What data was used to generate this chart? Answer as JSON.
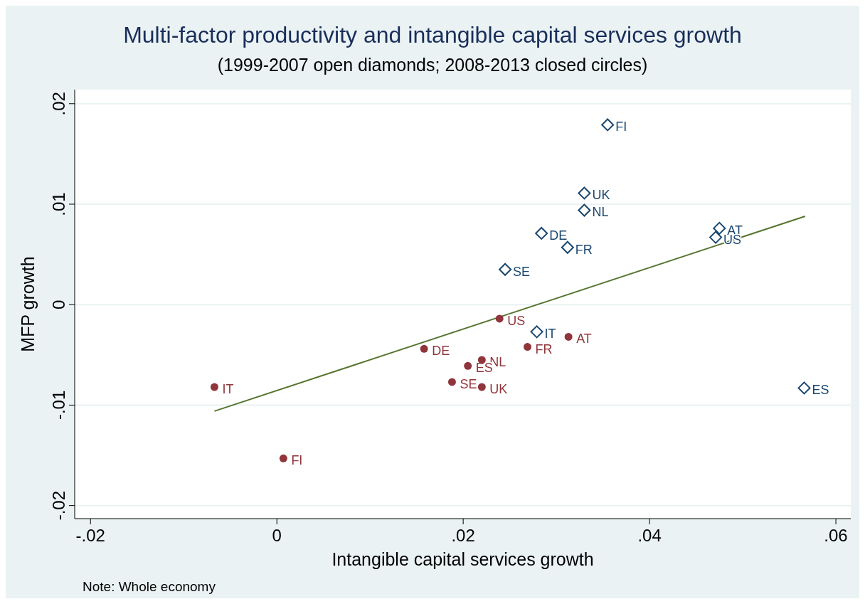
{
  "chart_data": {
    "type": "scatter",
    "title": "Multi-factor productivity and intangible capital services growth",
    "subtitle": "(1999-2007 open diamonds; 2008-2013 closed circles)",
    "xlabel": "Intangible capital services growth",
    "ylabel": "MFP growth",
    "xlim": [
      -0.0217,
      0.0616
    ],
    "ylim": [
      -0.0213,
      0.0214
    ],
    "xticks": [
      {
        "value": -0.02,
        "label": "-.02"
      },
      {
        "value": 0,
        "label": "0"
      },
      {
        "value": 0.02,
        "label": ".02"
      },
      {
        "value": 0.04,
        "label": ".04"
      },
      {
        "value": 0.06,
        "label": ".06"
      }
    ],
    "yticks": [
      {
        "value": -0.02,
        "label": "-.02"
      },
      {
        "value": -0.01,
        "label": "-.01"
      },
      {
        "value": 0,
        "label": "0"
      },
      {
        "value": 0.01,
        "label": ".01"
      },
      {
        "value": 0.02,
        "label": ".02"
      }
    ],
    "grid": "y",
    "series": [
      {
        "marker": "diamond",
        "color": "#1a476f",
        "x": [
          0.0355,
          0.033,
          0.033,
          0.0284,
          0.0312,
          0.0245,
          0.0475,
          0.0471,
          0.0279,
          0.0566
        ],
        "values": [
          0.0179,
          0.0111,
          0.0094,
          0.0071,
          0.0057,
          0.0035,
          0.0076,
          0.0067,
          -0.0027,
          -0.0083
        ]
      },
      {
        "marker": "circle",
        "color": "#90353b",
        "x": [
          0.0239,
          0.0313,
          0.0269,
          0.022,
          0.0158,
          0.0205,
          0.0188,
          0.022,
          -0.0067,
          0.0007
        ],
        "values": [
          -0.0014,
          -0.0032,
          -0.0042,
          -0.0055,
          -0.0044,
          -0.0061,
          -0.0077,
          -0.0082,
          -0.0082,
          -0.0153
        ]
      },
      {
        "type": "line",
        "color": "#55752f",
        "x": [
          -0.0067,
          0.0567
        ],
        "values": [
          -0.0106,
          0.0088
        ]
      }
    ],
    "annotations": [
      {
        "text": "FI",
        "x": 0.0355,
        "y": 0.0179
      },
      {
        "text": "UK",
        "x": 0.033,
        "y": 0.0111
      },
      {
        "text": "NL",
        "x": 0.033,
        "y": 0.0094
      },
      {
        "text": "DE",
        "x": 0.0284,
        "y": 0.0071
      },
      {
        "text": "FR",
        "x": 0.0312,
        "y": 0.0057
      },
      {
        "text": "SE",
        "x": 0.0245,
        "y": 0.0035
      },
      {
        "text": "AT",
        "x": 0.0475,
        "y": 0.0076
      },
      {
        "text": "US",
        "x": 0.0471,
        "y": 0.0067
      },
      {
        "text": "IT",
        "x": 0.0279,
        "y": -0.0027
      },
      {
        "text": "ES",
        "x": 0.0566,
        "y": -0.0083
      },
      {
        "text": "US",
        "x": 0.0239,
        "y": -0.0014
      },
      {
        "text": "AT",
        "x": 0.0313,
        "y": -0.0032
      },
      {
        "text": "FR",
        "x": 0.0269,
        "y": -0.0042
      },
      {
        "text": "NL",
        "x": 0.022,
        "y": -0.0055
      },
      {
        "text": "DE",
        "x": 0.0158,
        "y": -0.0044
      },
      {
        "text": "ES",
        "x": 0.0205,
        "y": -0.0061
      },
      {
        "text": "SE",
        "x": 0.0188,
        "y": -0.0077
      },
      {
        "text": "UK",
        "x": 0.022,
        "y": -0.0082
      },
      {
        "text": "IT",
        "x": -0.0067,
        "y": -0.0082
      },
      {
        "text": "FI",
        "x": 0.0007,
        "y": -0.0153
      },
      "Note: Whole economy"
    ]
  }
}
